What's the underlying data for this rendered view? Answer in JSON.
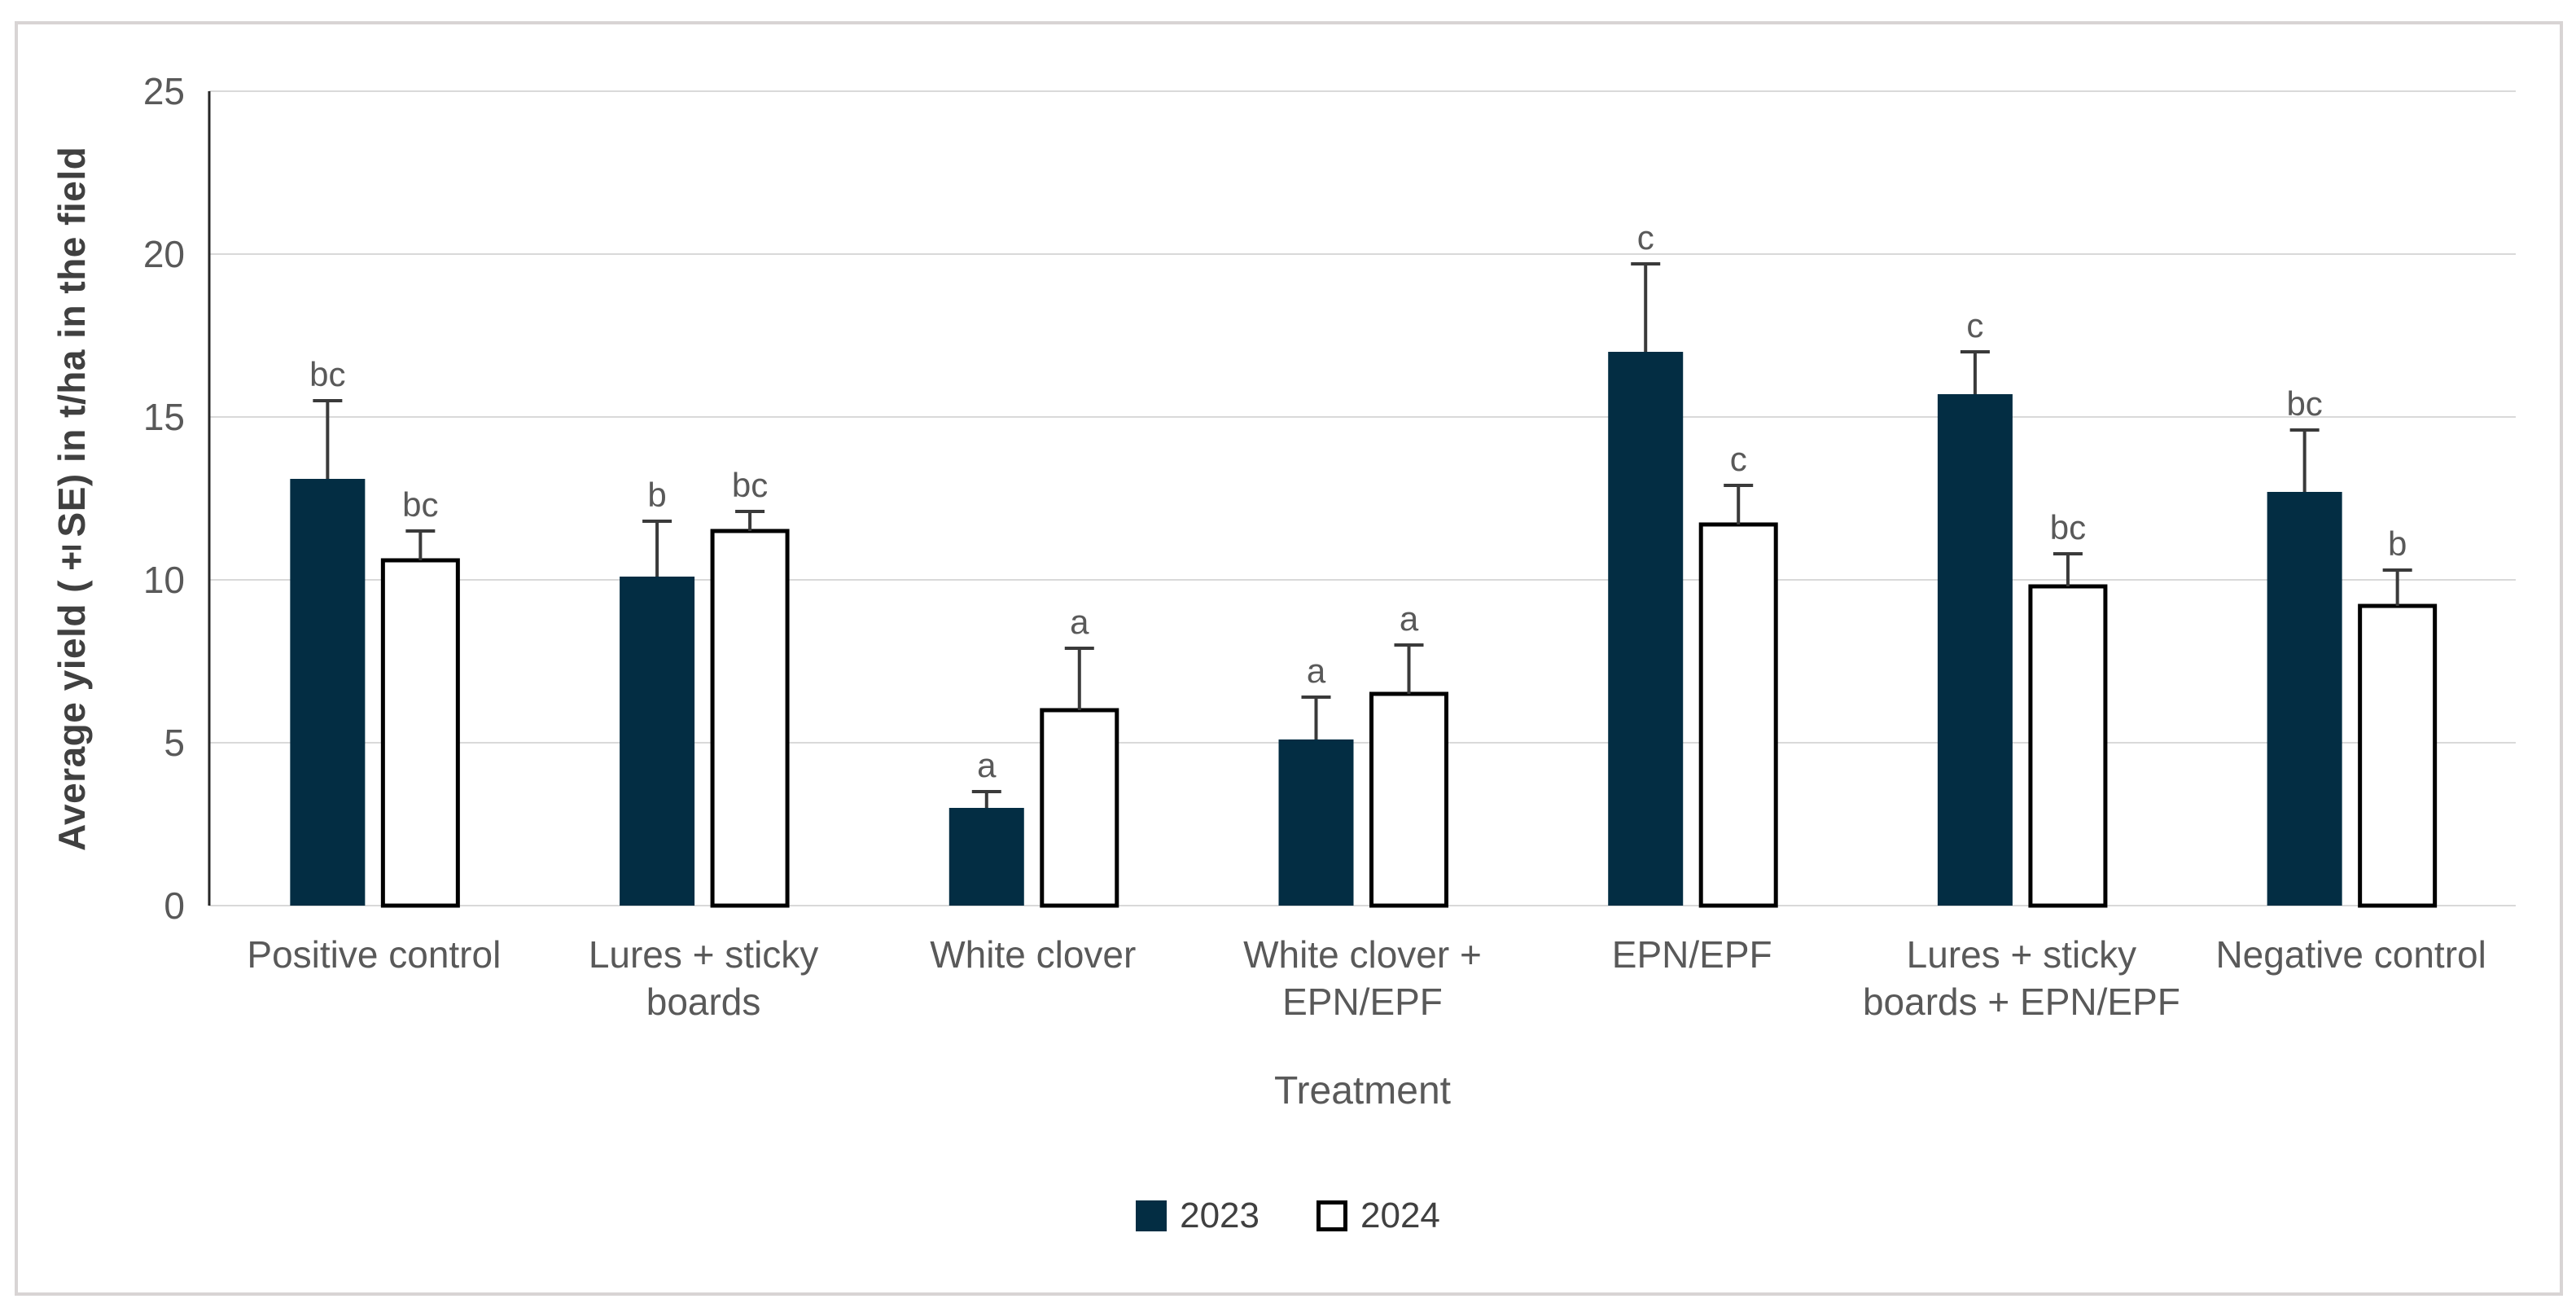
{
  "figure": {
    "background": "#ffffff",
    "frame_border_color": "#d8d4d4"
  },
  "colors": {
    "grid": "#d9d9d9",
    "axis_line": "#262626",
    "tick_text": "#595959",
    "category_text": "#595959",
    "letter_text": "#595959",
    "error_bar": "#3a3a3a",
    "series_2023": "#032d43",
    "series_2024_fill": "#ffffff",
    "series_2024_border": "#000000"
  },
  "chart_data": {
    "type": "bar",
    "title": "",
    "xlabel": "Treatment",
    "ylabel": "Average yield (±SE) in t/ha in the field",
    "ylim": [
      0,
      25
    ],
    "yticks": [
      0,
      5,
      10,
      15,
      20,
      25
    ],
    "grid": true,
    "legend_position": "bottom",
    "categories": [
      "Positive control",
      "Lures + sticky boards",
      "White clover",
      "White clover + EPN/EPF",
      "EPN/EPF",
      "Lures + sticky boards + EPN/EPF",
      "Negative control"
    ],
    "category_label_lines": [
      [
        "Positive control"
      ],
      [
        "Lures + sticky",
        "boards"
      ],
      [
        "White clover"
      ],
      [
        "White clover +",
        "EPN/EPF"
      ],
      [
        "EPN/EPF"
      ],
      [
        "Lures + sticky",
        "boards + EPN/EPF"
      ],
      [
        "Negative control"
      ]
    ],
    "series": [
      {
        "name": "2023",
        "fill": "#032d43",
        "stroke": "none",
        "values": [
          13.1,
          10.1,
          3.0,
          5.1,
          17.0,
          15.7,
          12.7
        ],
        "error_upper": [
          2.4,
          1.7,
          0.5,
          1.3,
          2.7,
          1.3,
          1.9
        ],
        "letters": [
          "bc",
          "b",
          "a",
          "a",
          "c",
          "c",
          "bc"
        ]
      },
      {
        "name": "2024",
        "fill": "#ffffff",
        "stroke": "#000000",
        "values": [
          10.6,
          11.5,
          6.0,
          6.5,
          11.7,
          9.8,
          9.2
        ],
        "error_upper": [
          0.9,
          0.6,
          1.9,
          1.5,
          1.2,
          1.0,
          1.1
        ],
        "letters": [
          "bc",
          "bc",
          "a",
          "a",
          "c",
          "bc",
          "b"
        ]
      }
    ]
  }
}
